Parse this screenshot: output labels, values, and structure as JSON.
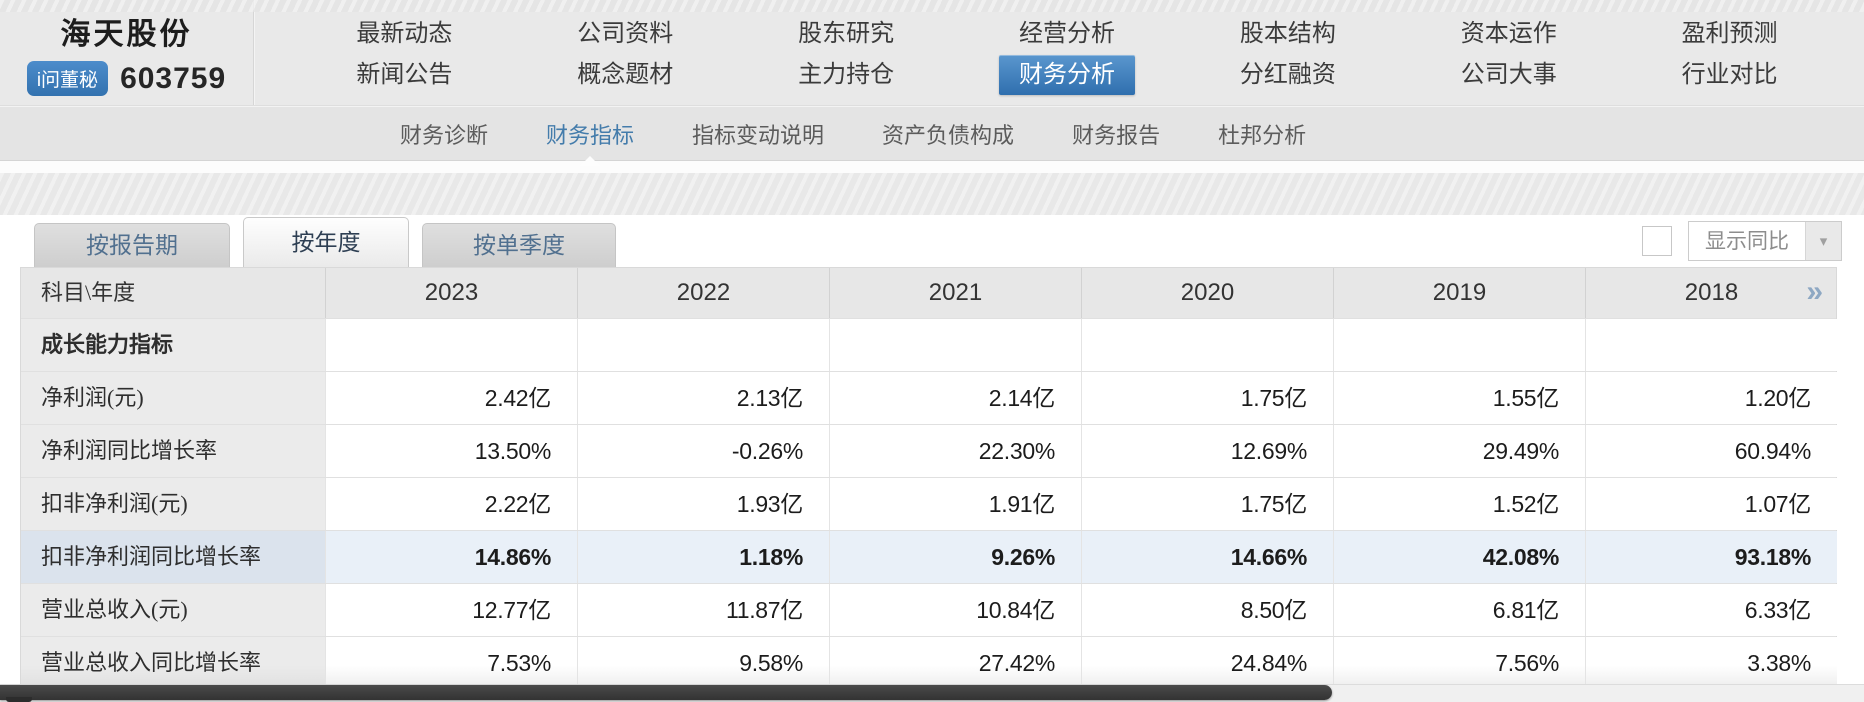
{
  "header": {
    "company_name": "海天股份",
    "stock_code": "603759",
    "badge_label": "i问董秘"
  },
  "nav": {
    "row1": [
      "最新动态",
      "公司资料",
      "股东研究",
      "经营分析",
      "股本结构",
      "资本运作",
      "盈利预测"
    ],
    "row2": [
      "新闻公告",
      "概念题材",
      "主力持仓",
      "财务分析",
      "分红融资",
      "公司大事",
      "行业对比"
    ],
    "active_item": "财务分析"
  },
  "subnav": {
    "items": [
      "财务诊断",
      "财务指标",
      "指标变动说明",
      "资产负债构成",
      "财务报告",
      "杜邦分析"
    ],
    "active_item": "财务指标"
  },
  "tabs": {
    "items": [
      "按报告期",
      "按年度",
      "按单季度"
    ],
    "active_item": "按年度"
  },
  "controls": {
    "checkbox_checked": false,
    "show_yoy_label": "显示同比"
  },
  "icons": {
    "double_chevron_right": "»",
    "chevron_down": "▾"
  },
  "colors": {
    "accent_blue": "#3372af",
    "subnav_active_blue": "#447cab",
    "highlight_row_bg": "#e9f0f8",
    "highlight_label_bg": "#dbe3ed",
    "badge_blue": "#3e82c4",
    "scrollbar_thumb": "#3a3a3a"
  },
  "table": {
    "corner_label": "科目\\年度",
    "years": [
      "2023",
      "2022",
      "2021",
      "2020",
      "2019",
      "2018"
    ],
    "rows": [
      {
        "label": "成长能力指标",
        "type": "section",
        "values": [
          "",
          "",
          "",
          "",
          "",
          ""
        ]
      },
      {
        "label": "净利润(元)",
        "type": "data",
        "values": [
          "2.42亿",
          "2.13亿",
          "2.14亿",
          "1.75亿",
          "1.55亿",
          "1.20亿"
        ]
      },
      {
        "label": "净利润同比增长率",
        "type": "data",
        "values": [
          "13.50%",
          "-0.26%",
          "22.30%",
          "12.69%",
          "29.49%",
          "60.94%"
        ]
      },
      {
        "label": "扣非净利润(元)",
        "type": "data",
        "values": [
          "2.22亿",
          "1.93亿",
          "1.91亿",
          "1.75亿",
          "1.52亿",
          "1.07亿"
        ]
      },
      {
        "label": "扣非净利润同比增长率",
        "type": "highlight",
        "values": [
          "14.86%",
          "1.18%",
          "9.26%",
          "14.66%",
          "42.08%",
          "93.18%"
        ]
      },
      {
        "label": "营业总收入(元)",
        "type": "data",
        "values": [
          "12.77亿",
          "11.87亿",
          "10.84亿",
          "8.50亿",
          "6.81亿",
          "6.33亿"
        ]
      },
      {
        "label": "营业总收入同比增长率",
        "type": "data",
        "values": [
          "7.53%",
          "9.58%",
          "27.42%",
          "24.84%",
          "7.56%",
          "3.38%"
        ]
      }
    ]
  }
}
